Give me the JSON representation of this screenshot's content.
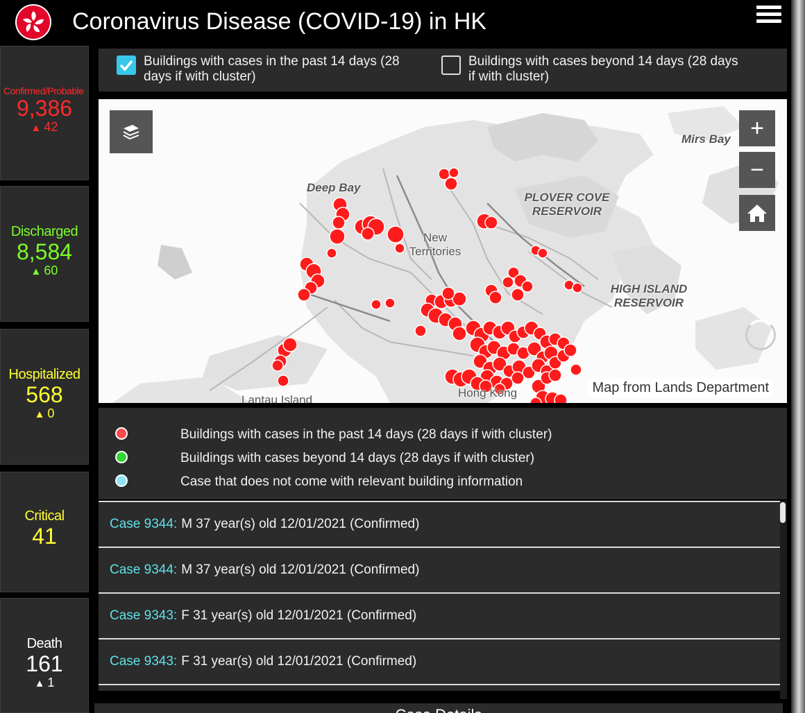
{
  "header": {
    "title": "Coronavirus Disease (COVID-19) in HK",
    "logo_icon": "bauhinia-emblem-icon",
    "menu_icon": "hamburger-menu-icon"
  },
  "stats": [
    {
      "id": "confirmed",
      "label": "Confirmed/Probable",
      "value": "9,386",
      "delta": "42",
      "color": "#ff2b2b"
    },
    {
      "id": "discharged",
      "label": "Discharged",
      "value": "8,584",
      "delta": "60",
      "color": "#7bff2a"
    },
    {
      "id": "hospitalized",
      "label": "Hospitalized",
      "value": "568",
      "delta": "0",
      "color": "#ffff33"
    },
    {
      "id": "critical",
      "label": "Critical",
      "value": "41",
      "delta": "",
      "color": "#ffff33"
    },
    {
      "id": "death",
      "label": "Death",
      "value": "161",
      "delta": "1",
      "color": "#ffffff"
    }
  ],
  "filters": [
    {
      "label": "Buildings with cases in the past 14 days (28 days if with cluster)",
      "checked": true
    },
    {
      "label": "Buildings with cases beyond 14 days (28 days if with cluster)",
      "checked": false
    }
  ],
  "map": {
    "labels": {
      "deep_bay": "Deep Bay",
      "mirs_bay": "Mirs Bay",
      "plover_cove": "PLOVER COVE RESERVOIR",
      "high_island": "HIGH ISLAND RESERVOIR",
      "new_territories": "New Territories",
      "lantau": "Lantau Island",
      "hong_kong": "Hong Kong"
    },
    "attribution": "Map from Lands Department",
    "controls": {
      "basemap_icon": "basemap-toggle-icon",
      "zoom_in": "+",
      "zoom_out": "−",
      "home_icon": "home-icon"
    }
  },
  "legend": [
    {
      "label": "Buildings with cases in the past 14 days (28 days if with cluster)",
      "color": "#ff4a4a"
    },
    {
      "label": "Buildings with cases beyond 14 days (28 days if with cluster)",
      "color": "#33d633"
    },
    {
      "label": "Case that does not come with relevant building information",
      "color": "#8fe3f5"
    }
  ],
  "cases": [
    {
      "id": "Case 9344:",
      "detail": "M  37 year(s) old  12/01/2021 (Confirmed)"
    },
    {
      "id": "Case 9344:",
      "detail": "M  37 year(s) old  12/01/2021 (Confirmed)"
    },
    {
      "id": "Case 9343:",
      "detail": "F  31 year(s) old  12/01/2021 (Confirmed)"
    },
    {
      "id": "Case 9343:",
      "detail": "F  31 year(s) old  12/01/2021 (Confirmed)"
    }
  ],
  "footer": {
    "label": "Case Details"
  }
}
